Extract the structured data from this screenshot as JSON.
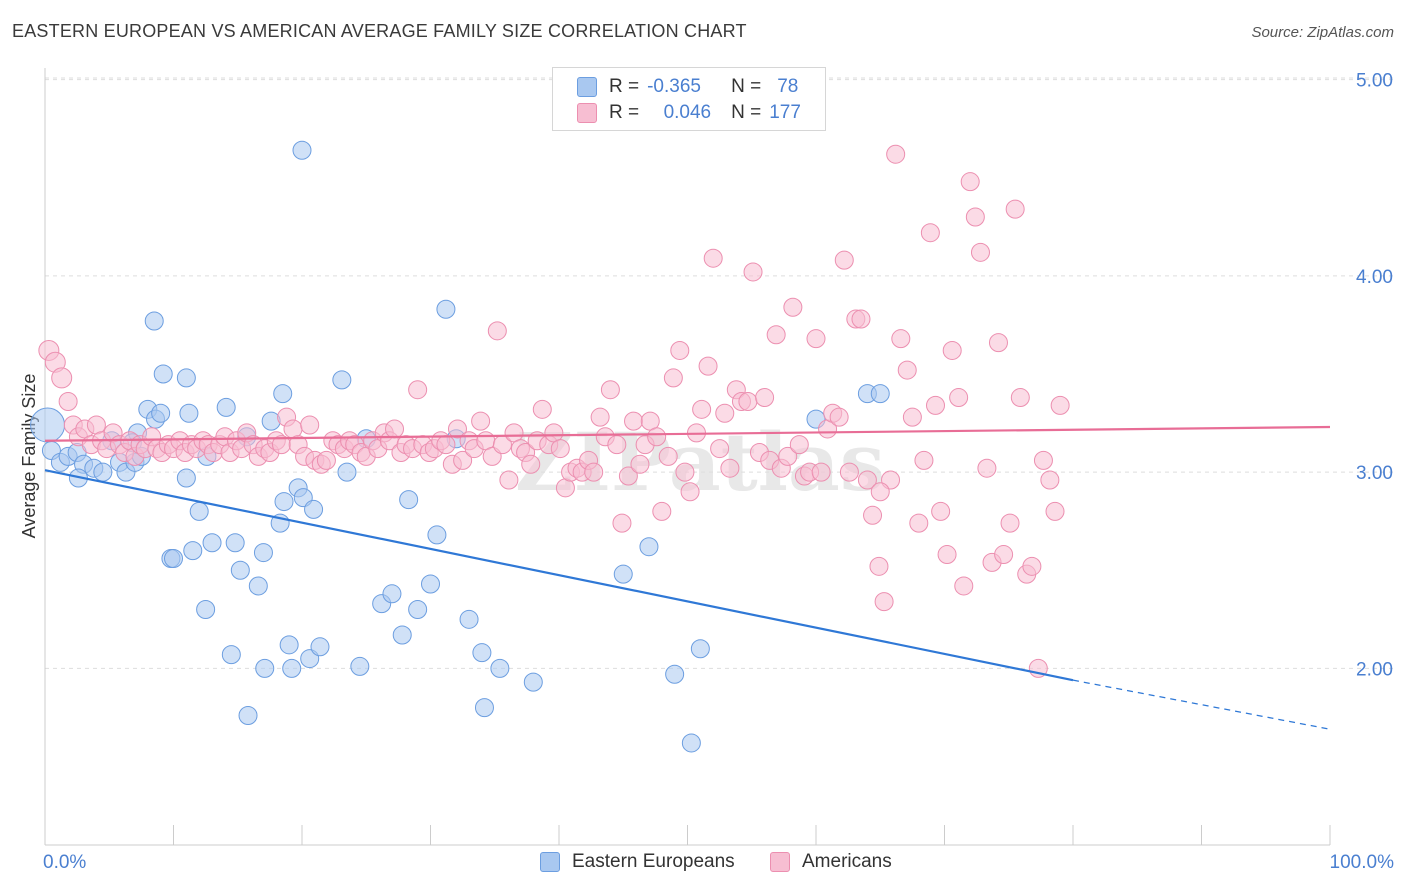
{
  "title": "EASTERN EUROPEAN VS AMERICAN AVERAGE FAMILY SIZE CORRELATION CHART",
  "source": "Source: ZipAtlas.com",
  "watermark": "ZIPatlas",
  "legend_top": {
    "rows": [
      {
        "r_label": "R =",
        "r_value": "-0.365",
        "n_label": "N =",
        "n_value": "78"
      },
      {
        "r_label": "R =",
        "r_value": "0.046",
        "n_label": "N =",
        "n_value": "177"
      }
    ]
  },
  "legend_bottom": {
    "items": [
      "Eastern Europeans",
      "Americans"
    ]
  },
  "colors": {
    "blue_fill": "#a9c8f0",
    "blue_stroke": "#6c9ee0",
    "blue_line": "#2f78d6",
    "pink_fill": "#f7bed2",
    "pink_stroke": "#ec8fb0",
    "pink_line": "#e86d96",
    "tick_text": "#4a7fd0",
    "grid": "#dddddd"
  },
  "chart_data": {
    "type": "scatter",
    "title": "EASTERN EUROPEAN VS AMERICAN AVERAGE FAMILY SIZE CORRELATION CHART",
    "xlabel": "",
    "ylabel": "Average Family Size",
    "x_tick_labels": [
      "0.0%",
      "100.0%"
    ],
    "y_tick_labels": [
      "2.00",
      "3.00",
      "4.00",
      "5.00"
    ],
    "y_ticks": [
      2,
      3,
      4,
      5
    ],
    "xlim": [
      0,
      100
    ],
    "ylim": [
      1.1,
      5.1
    ],
    "grid": true,
    "legend_position": "top-center",
    "series": [
      {
        "name": "Eastern Europeans",
        "r": -0.365,
        "n": 78,
        "trend": {
          "x0": 0,
          "y0": 3.01,
          "x1": 80,
          "y1": 1.94,
          "dashed_to_x": 100,
          "dashed_to_y": 1.69
        },
        "points": [
          [
            0.2,
            3.24
          ],
          [
            0.5,
            3.11
          ],
          [
            1.2,
            3.05
          ],
          [
            1.8,
            3.08
          ],
          [
            2.5,
            3.1
          ],
          [
            3.0,
            3.04
          ],
          [
            3.8,
            3.02
          ],
          [
            4.5,
            3.0
          ],
          [
            5.2,
            3.16
          ],
          [
            5.8,
            3.05
          ],
          [
            6.3,
            3.0
          ],
          [
            7.0,
            3.05
          ],
          [
            2.6,
            2.97
          ],
          [
            7.2,
            3.2
          ],
          [
            6.8,
            3.15
          ],
          [
            7.5,
            3.08
          ],
          [
            8.0,
            3.32
          ],
          [
            8.6,
            3.27
          ],
          [
            9.0,
            3.3
          ],
          [
            9.2,
            3.5
          ],
          [
            9.8,
            2.56
          ],
          [
            10.0,
            2.56
          ],
          [
            11.0,
            2.97
          ],
          [
            11.0,
            3.48
          ],
          [
            11.5,
            2.6
          ],
          [
            12.0,
            2.8
          ],
          [
            12.5,
            2.3
          ],
          [
            13.0,
            2.64
          ],
          [
            11.2,
            3.3
          ],
          [
            8.5,
            3.77
          ],
          [
            14.1,
            3.33
          ],
          [
            14.5,
            2.07
          ],
          [
            14.8,
            2.64
          ],
          [
            15.2,
            2.5
          ],
          [
            15.7,
            3.18
          ],
          [
            15.8,
            1.76
          ],
          [
            16.6,
            2.42
          ],
          [
            17.0,
            2.59
          ],
          [
            17.1,
            2.0
          ],
          [
            17.6,
            3.26
          ],
          [
            18.3,
            2.74
          ],
          [
            18.6,
            2.85
          ],
          [
            18.5,
            3.4
          ],
          [
            19.0,
            2.12
          ],
          [
            19.2,
            2.0
          ],
          [
            19.7,
            2.92
          ],
          [
            20.1,
            2.87
          ],
          [
            20.0,
            4.64
          ],
          [
            20.6,
            2.05
          ],
          [
            20.9,
            2.81
          ],
          [
            21.4,
            2.11
          ],
          [
            23.1,
            3.47
          ],
          [
            23.5,
            3.0
          ],
          [
            24.5,
            2.01
          ],
          [
            25.0,
            3.17
          ],
          [
            26.2,
            2.33
          ],
          [
            27.0,
            2.38
          ],
          [
            27.8,
            2.17
          ],
          [
            28.3,
            2.86
          ],
          [
            29.0,
            2.3
          ],
          [
            30.0,
            2.43
          ],
          [
            30.5,
            2.68
          ],
          [
            31.2,
            3.83
          ],
          [
            32.0,
            3.17
          ],
          [
            33.0,
            2.25
          ],
          [
            34.0,
            2.08
          ],
          [
            34.2,
            1.8
          ],
          [
            35.4,
            2.0
          ],
          [
            38.0,
            1.93
          ],
          [
            45.0,
            2.48
          ],
          [
            47.0,
            2.62
          ],
          [
            49.0,
            1.97
          ],
          [
            50.3,
            1.62
          ],
          [
            51.0,
            2.1
          ],
          [
            60.0,
            3.27
          ],
          [
            64.0,
            3.4
          ],
          [
            65.0,
            3.4
          ],
          [
            12.6,
            3.08
          ]
        ]
      },
      {
        "name": "Americans",
        "r": 0.046,
        "n": 177,
        "trend": {
          "x0": 0,
          "y0": 3.16,
          "x1": 100,
          "y1": 3.23
        },
        "points": [
          [
            0.3,
            3.62
          ],
          [
            0.8,
            3.56
          ],
          [
            1.3,
            3.48
          ],
          [
            1.8,
            3.36
          ],
          [
            2.2,
            3.24
          ],
          [
            2.6,
            3.18
          ],
          [
            3.1,
            3.22
          ],
          [
            3.6,
            3.14
          ],
          [
            4.0,
            3.24
          ],
          [
            4.4,
            3.16
          ],
          [
            4.8,
            3.12
          ],
          [
            5.3,
            3.2
          ],
          [
            5.8,
            3.14
          ],
          [
            6.2,
            3.1
          ],
          [
            6.6,
            3.16
          ],
          [
            7.0,
            3.08
          ],
          [
            7.4,
            3.14
          ],
          [
            7.8,
            3.12
          ],
          [
            8.3,
            3.18
          ],
          [
            8.7,
            3.12
          ],
          [
            9.1,
            3.1
          ],
          [
            9.6,
            3.14
          ],
          [
            10.0,
            3.12
          ],
          [
            10.5,
            3.16
          ],
          [
            10.9,
            3.1
          ],
          [
            11.4,
            3.14
          ],
          [
            11.8,
            3.12
          ],
          [
            12.3,
            3.16
          ],
          [
            12.7,
            3.14
          ],
          [
            13.1,
            3.1
          ],
          [
            13.6,
            3.14
          ],
          [
            14.0,
            3.18
          ],
          [
            14.4,
            3.1
          ],
          [
            14.9,
            3.16
          ],
          [
            15.3,
            3.12
          ],
          [
            15.7,
            3.2
          ],
          [
            16.2,
            3.14
          ],
          [
            16.6,
            3.08
          ],
          [
            17.1,
            3.12
          ],
          [
            17.5,
            3.1
          ],
          [
            18.0,
            3.16
          ],
          [
            18.4,
            3.14
          ],
          [
            18.8,
            3.28
          ],
          [
            19.3,
            3.22
          ],
          [
            19.7,
            3.14
          ],
          [
            20.2,
            3.08
          ],
          [
            20.6,
            3.24
          ],
          [
            21.0,
            3.06
          ],
          [
            21.5,
            3.04
          ],
          [
            21.9,
            3.06
          ],
          [
            22.4,
            3.16
          ],
          [
            22.8,
            3.14
          ],
          [
            23.3,
            3.12
          ],
          [
            23.7,
            3.16
          ],
          [
            24.1,
            3.14
          ],
          [
            24.6,
            3.1
          ],
          [
            25.0,
            3.08
          ],
          [
            25.5,
            3.16
          ],
          [
            25.9,
            3.12
          ],
          [
            26.4,
            3.2
          ],
          [
            26.8,
            3.16
          ],
          [
            27.2,
            3.22
          ],
          [
            27.7,
            3.1
          ],
          [
            28.1,
            3.14
          ],
          [
            28.6,
            3.12
          ],
          [
            29.0,
            3.42
          ],
          [
            29.4,
            3.14
          ],
          [
            29.9,
            3.1
          ],
          [
            30.3,
            3.12
          ],
          [
            30.8,
            3.16
          ],
          [
            31.2,
            3.14
          ],
          [
            31.7,
            3.04
          ],
          [
            32.1,
            3.22
          ],
          [
            32.5,
            3.06
          ],
          [
            33.0,
            3.16
          ],
          [
            33.4,
            3.12
          ],
          [
            33.9,
            3.26
          ],
          [
            34.3,
            3.16
          ],
          [
            34.8,
            3.08
          ],
          [
            35.2,
            3.72
          ],
          [
            35.6,
            3.14
          ],
          [
            36.1,
            2.96
          ],
          [
            36.5,
            3.2
          ],
          [
            37.0,
            3.12
          ],
          [
            37.4,
            3.1
          ],
          [
            37.8,
            3.04
          ],
          [
            38.3,
            3.16
          ],
          [
            38.7,
            3.32
          ],
          [
            39.2,
            3.14
          ],
          [
            39.6,
            3.2
          ],
          [
            40.1,
            3.12
          ],
          [
            40.5,
            2.92
          ],
          [
            40.9,
            3.0
          ],
          [
            41.4,
            3.02
          ],
          [
            41.8,
            3.0
          ],
          [
            42.3,
            3.06
          ],
          [
            42.7,
            3.0
          ],
          [
            43.2,
            3.28
          ],
          [
            43.6,
            3.18
          ],
          [
            44.0,
            3.42
          ],
          [
            44.5,
            3.14
          ],
          [
            44.9,
            2.74
          ],
          [
            45.4,
            2.98
          ],
          [
            45.8,
            3.26
          ],
          [
            46.3,
            3.04
          ],
          [
            46.7,
            3.14
          ],
          [
            47.1,
            3.26
          ],
          [
            47.6,
            3.18
          ],
          [
            48.0,
            2.8
          ],
          [
            48.5,
            3.08
          ],
          [
            48.9,
            3.48
          ],
          [
            49.4,
            3.62
          ],
          [
            49.8,
            3.0
          ],
          [
            50.2,
            2.9
          ],
          [
            50.7,
            3.2
          ],
          [
            51.1,
            3.32
          ],
          [
            51.6,
            3.54
          ],
          [
            52.0,
            4.09
          ],
          [
            52.5,
            3.12
          ],
          [
            52.9,
            3.3
          ],
          [
            53.3,
            3.02
          ],
          [
            53.8,
            3.42
          ],
          [
            54.2,
            3.36
          ],
          [
            54.7,
            3.36
          ],
          [
            55.1,
            4.02
          ],
          [
            55.6,
            3.1
          ],
          [
            56.0,
            3.38
          ],
          [
            56.4,
            3.06
          ],
          [
            56.9,
            3.7
          ],
          [
            57.3,
            3.02
          ],
          [
            57.8,
            3.08
          ],
          [
            58.2,
            3.84
          ],
          [
            58.7,
            3.14
          ],
          [
            59.1,
            2.98
          ],
          [
            59.5,
            3.0
          ],
          [
            60.0,
            3.68
          ],
          [
            60.4,
            3.0
          ],
          [
            60.9,
            3.22
          ],
          [
            61.3,
            3.3
          ],
          [
            61.8,
            3.28
          ],
          [
            62.2,
            4.08
          ],
          [
            62.6,
            3.0
          ],
          [
            63.1,
            3.78
          ],
          [
            63.5,
            3.78
          ],
          [
            64.0,
            2.96
          ],
          [
            64.4,
            2.78
          ],
          [
            64.9,
            2.52
          ],
          [
            65.3,
            2.34
          ],
          [
            65.8,
            2.96
          ],
          [
            66.2,
            4.62
          ],
          [
            66.6,
            3.68
          ],
          [
            67.1,
            3.52
          ],
          [
            67.5,
            3.28
          ],
          [
            68.0,
            2.74
          ],
          [
            68.4,
            3.06
          ],
          [
            68.9,
            4.22
          ],
          [
            69.3,
            3.34
          ],
          [
            69.7,
            2.8
          ],
          [
            70.2,
            2.58
          ],
          [
            70.6,
            3.62
          ],
          [
            71.1,
            3.38
          ],
          [
            71.5,
            2.42
          ],
          [
            72.0,
            4.48
          ],
          [
            72.4,
            4.3
          ],
          [
            72.8,
            4.12
          ],
          [
            73.3,
            3.02
          ],
          [
            73.7,
            2.54
          ],
          [
            74.2,
            3.66
          ],
          [
            74.6,
            2.58
          ],
          [
            75.1,
            2.74
          ],
          [
            75.5,
            4.34
          ],
          [
            75.9,
            3.38
          ],
          [
            76.4,
            2.48
          ],
          [
            76.8,
            2.52
          ],
          [
            77.3,
            2.0
          ],
          [
            77.7,
            3.06
          ],
          [
            78.2,
            2.96
          ],
          [
            78.6,
            2.8
          ],
          [
            79.0,
            3.34
          ],
          [
            65.0,
            2.9
          ]
        ]
      }
    ]
  }
}
